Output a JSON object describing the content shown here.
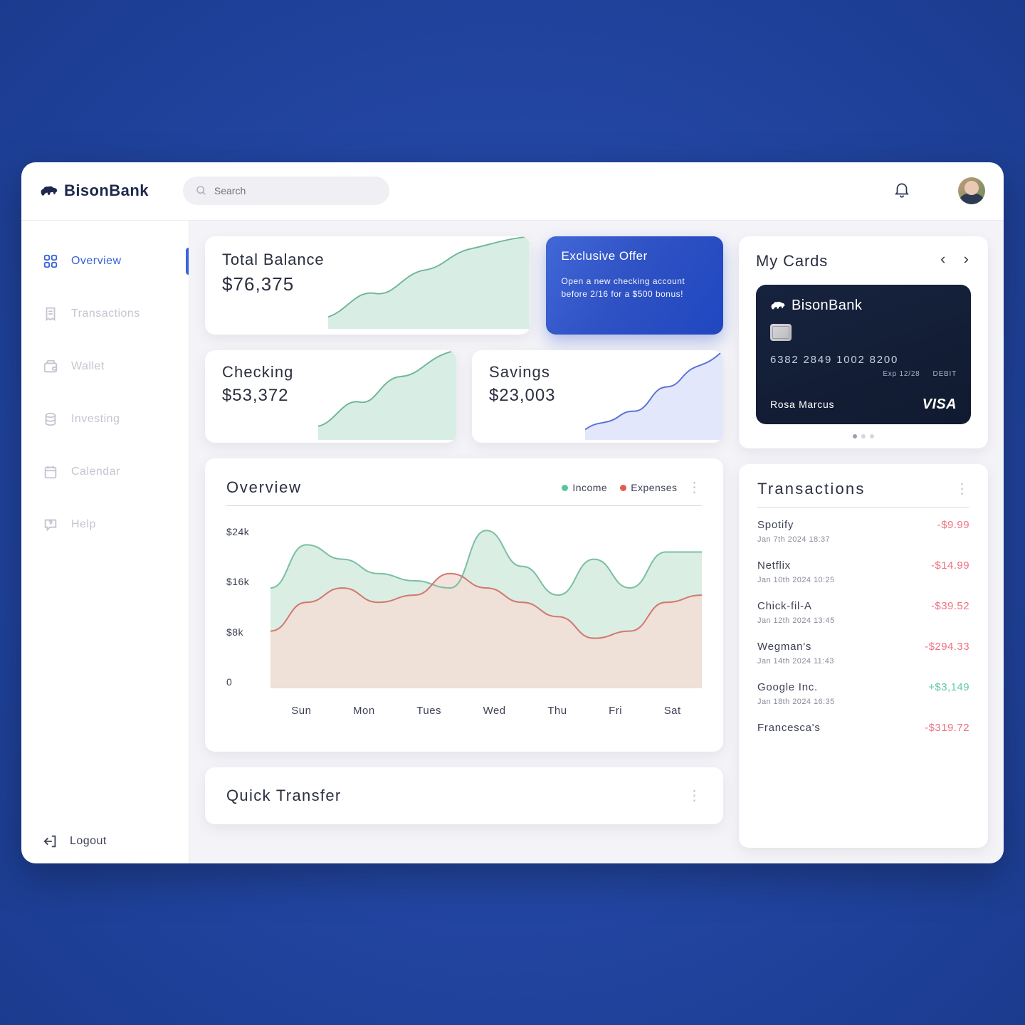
{
  "brand": "BisonBank",
  "search": {
    "placeholder": "Search"
  },
  "sidebar": {
    "items": [
      {
        "label": "Overview",
        "icon": "grid"
      },
      {
        "label": "Transactions",
        "icon": "receipt"
      },
      {
        "label": "Wallet",
        "icon": "wallet"
      },
      {
        "label": "Investing",
        "icon": "coins"
      },
      {
        "label": "Calendar",
        "icon": "calendar"
      },
      {
        "label": "Help",
        "icon": "help"
      }
    ],
    "logout": "Logout"
  },
  "balance": {
    "title": "Total Balance",
    "amount": "$76,375"
  },
  "offer": {
    "title": "Exclusive Offer",
    "line1": "Open a new checking account",
    "line2": "before 2/16 for a $500 bonus!"
  },
  "accounts": {
    "checking": {
      "title": "Checking",
      "amount": "$53,372",
      "spark_color": "#5aa88a"
    },
    "savings": {
      "title": "Savings",
      "amount": "$23,003",
      "spark_color": "#5a71d8"
    }
  },
  "overview_chart": {
    "title": "Overview",
    "legend": {
      "income": "Income",
      "expenses": "Expenses"
    },
    "colors": {
      "income_stroke": "#7bbfa4",
      "income_fill": "#d6ece1",
      "expenses_stroke": "#d2796e",
      "expenses_fill": "#f2ddd6",
      "dot_income": "#57c79b",
      "dot_expenses": "#e25b52"
    },
    "y_ticks": [
      "$24k",
      "$16k",
      "$8k",
      "0"
    ],
    "x_ticks": [
      "Sun",
      "Mon",
      "Tues",
      "Wed",
      "Thu",
      "Fri",
      "Sat"
    ],
    "y_max": 24,
    "income_values": [
      14,
      20,
      18,
      16,
      15,
      14,
      22,
      17,
      13,
      18,
      14,
      19,
      19
    ],
    "expenses_values": [
      8,
      12,
      14,
      12,
      13,
      16,
      14,
      12,
      10,
      7,
      8,
      12,
      13
    ]
  },
  "quick_transfer": {
    "title": "Quick Transfer"
  },
  "my_cards": {
    "title": "My Cards",
    "card": {
      "brand": "BisonBank",
      "number": "6382 2849 1002 8200",
      "exp": "Exp 12/28",
      "type": "DEBIT",
      "name": "Rosa Marcus",
      "network": "VISA"
    }
  },
  "transactions": {
    "title": "Transactions",
    "items": [
      {
        "name": "Spotify",
        "time": "Jan 7th 2024 18:37",
        "amount": "-$9.99",
        "cls": "neg"
      },
      {
        "name": "Netflix",
        "time": "Jan 10th 2024 10:25",
        "amount": "-$14.99",
        "cls": "neg"
      },
      {
        "name": "Chick-fil-A",
        "time": "Jan 12th 2024 13:45",
        "amount": "-$39.52",
        "cls": "neg"
      },
      {
        "name": "Wegman's",
        "time": "Jan 14th 2024 11:43",
        "amount": "-$294.33",
        "cls": "neg"
      },
      {
        "name": "Google Inc.",
        "time": "Jan 18th 2024 16:35",
        "amount": "+$3,149",
        "cls": "pos"
      },
      {
        "name": "Francesca's",
        "time": "",
        "amount": "-$319.72",
        "cls": "neg"
      }
    ]
  },
  "styling": {
    "page_bg": "#1e3f9a",
    "app_bg": "#ffffff",
    "panel_bg": "#f4f4f8",
    "accent": "#3a63d9",
    "text_primary": "#2b2f40",
    "text_muted": "#c3c5d0"
  }
}
